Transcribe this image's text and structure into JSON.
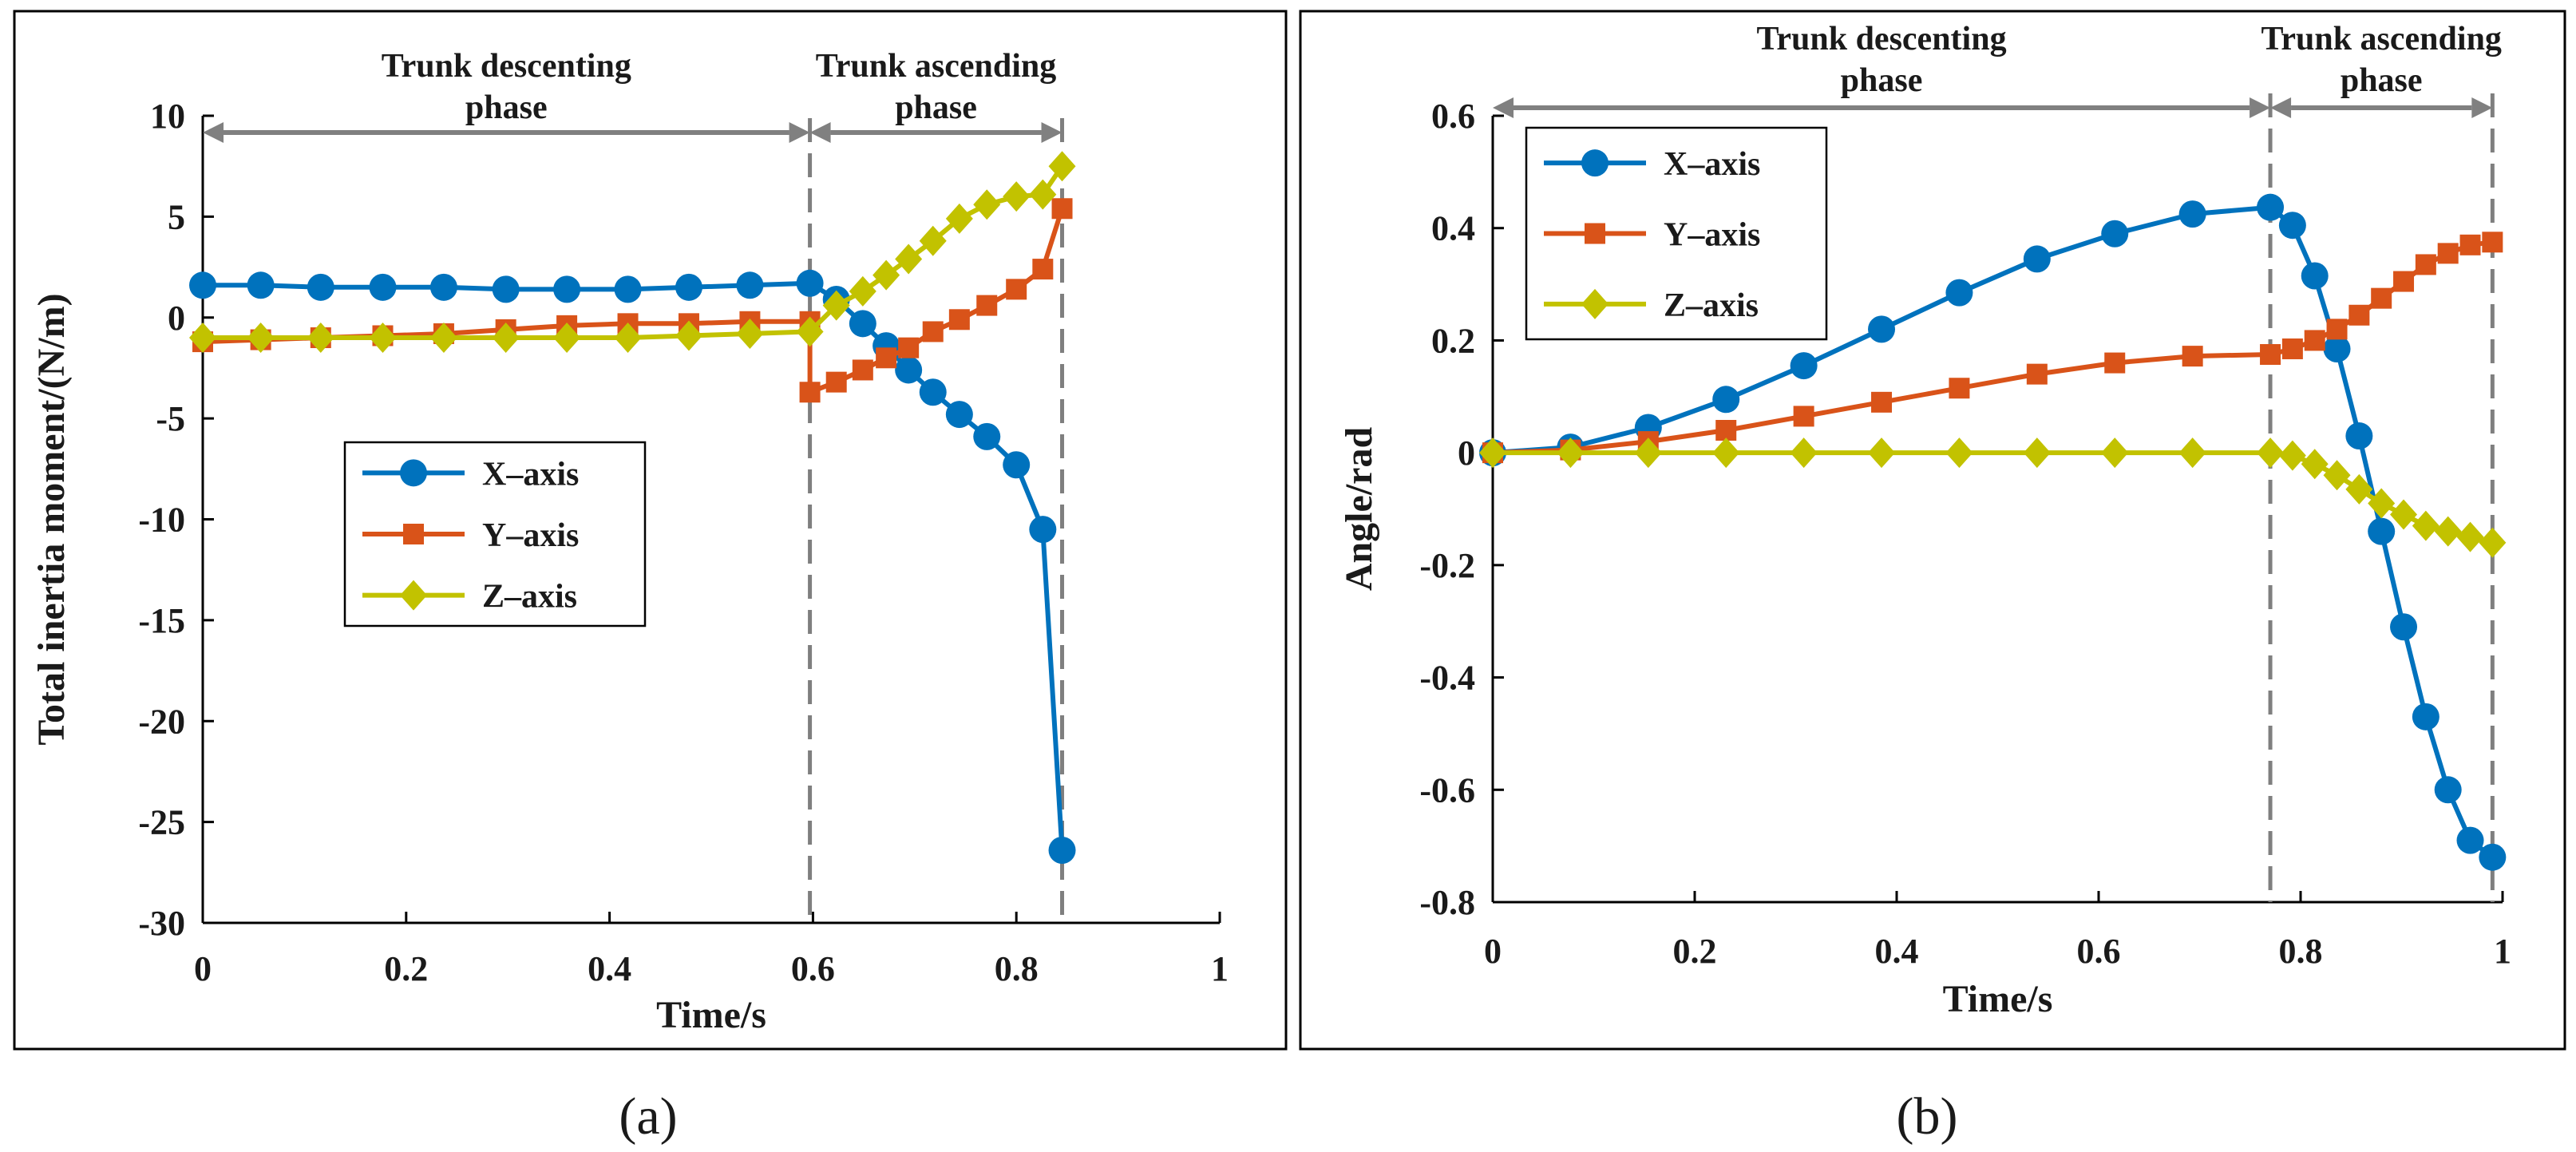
{
  "chart_data": [
    {
      "type": "line",
      "panel_label": "(a)",
      "xlabel": "Time/s",
      "ylabel": "Total inertia moment/(N/m)",
      "xlim": [
        0,
        1
      ],
      "ylim": [
        -30,
        10
      ],
      "xticks": [
        0,
        0.2,
        0.4,
        0.6,
        0.8,
        1
      ],
      "xtick_labels": [
        "0",
        "0.2",
        "0.4",
        "0.6",
        "0.8",
        "1"
      ],
      "yticks": [
        10,
        5,
        0,
        -5,
        -10,
        -15,
        -20,
        -25,
        -30
      ],
      "ytick_labels": [
        "10",
        "5",
        "0",
        "-5",
        "-10",
        "-15",
        "-20",
        "-25",
        "-30"
      ],
      "legend_position": "middle-left",
      "phases": [
        {
          "name": "Trunk descenting",
          "line2": "phase",
          "start": 0,
          "end": 0.597
        },
        {
          "name": "Trunk ascending",
          "line2": "phase",
          "start": 0.597,
          "end": 0.845
        }
      ],
      "dividers": [
        0.597,
        0.845
      ],
      "series": [
        {
          "name": "X–axis",
          "color": "#0072BD",
          "marker": "circle",
          "x": [
            0,
            0.057,
            0.116,
            0.177,
            0.237,
            0.298,
            0.358,
            0.418,
            0.478,
            0.538,
            0.597,
            0.623,
            0.649,
            0.672,
            0.694,
            0.718,
            0.744,
            0.771,
            0.8,
            0.826,
            0.845
          ],
          "y": [
            1.6,
            1.6,
            1.5,
            1.5,
            1.5,
            1.4,
            1.4,
            1.4,
            1.5,
            1.6,
            1.7,
            0.9,
            -0.3,
            -1.4,
            -2.6,
            -3.7,
            -4.8,
            -5.9,
            -7.3,
            -10.5,
            -26.4
          ]
        },
        {
          "name": "Y–axis",
          "color": "#D95319",
          "marker": "square",
          "x": [
            0,
            0.057,
            0.116,
            0.177,
            0.237,
            0.298,
            0.358,
            0.418,
            0.478,
            0.538,
            0.597,
            0.597,
            0.623,
            0.649,
            0.672,
            0.694,
            0.718,
            0.744,
            0.771,
            0.8,
            0.826,
            0.845
          ],
          "y": [
            -1.2,
            -1.1,
            -1.0,
            -0.9,
            -0.8,
            -0.6,
            -0.4,
            -0.3,
            -0.3,
            -0.2,
            -0.2,
            -3.7,
            -3.2,
            -2.6,
            -2.0,
            -1.5,
            -0.7,
            -0.1,
            0.6,
            1.4,
            2.4,
            5.4
          ]
        },
        {
          "name": "Z–axis",
          "color": "#C2C200",
          "marker": "diamond",
          "x": [
            0,
            0.057,
            0.116,
            0.177,
            0.237,
            0.298,
            0.358,
            0.418,
            0.478,
            0.538,
            0.597,
            0.623,
            0.649,
            0.672,
            0.694,
            0.718,
            0.744,
            0.771,
            0.8,
            0.826,
            0.845
          ],
          "y": [
            -1.0,
            -1.0,
            -1.0,
            -1.0,
            -1.0,
            -1.0,
            -1.0,
            -1.0,
            -0.9,
            -0.8,
            -0.7,
            0.6,
            1.3,
            2.1,
            2.9,
            3.8,
            4.9,
            5.6,
            6.0,
            6.1,
            7.5
          ]
        }
      ]
    },
    {
      "type": "line",
      "panel_label": "(b)",
      "xlabel": "Time/s",
      "ylabel": "Angle/rad",
      "xlim": [
        0,
        1
      ],
      "ylim": [
        -0.8,
        0.6
      ],
      "xticks": [
        0,
        0.2,
        0.4,
        0.6,
        0.8,
        1
      ],
      "xtick_labels": [
        "0",
        "0.2",
        "0.4",
        "0.6",
        "0.8",
        "1"
      ],
      "yticks": [
        0.6,
        0.4,
        0.2,
        0,
        -0.2,
        -0.4,
        -0.6,
        -0.8
      ],
      "ytick_labels": [
        "0.6",
        "0.4",
        "0.2",
        "0",
        "-0.2",
        "-0.4",
        "-0.6",
        "-0.8"
      ],
      "legend_position": "top-left",
      "phases": [
        {
          "name": "Trunk descenting",
          "line2": "phase",
          "start": 0,
          "end": 0.77
        },
        {
          "name": "Trunk ascending",
          "line2": "phase",
          "start": 0.77,
          "end": 0.99
        }
      ],
      "dividers": [
        0.77,
        0.99
      ],
      "series": [
        {
          "name": "X–axis",
          "color": "#0072BD",
          "marker": "circle",
          "x": [
            0,
            0.077,
            0.154,
            0.231,
            0.308,
            0.385,
            0.462,
            0.539,
            0.616,
            0.693,
            0.77,
            0.792,
            0.814,
            0.836,
            0.858,
            0.88,
            0.902,
            0.924,
            0.946,
            0.968,
            0.99
          ],
          "y": [
            0,
            0.01,
            0.045,
            0.095,
            0.155,
            0.22,
            0.285,
            0.345,
            0.39,
            0.425,
            0.437,
            0.405,
            0.315,
            0.185,
            0.03,
            -0.14,
            -0.31,
            -0.47,
            -0.6,
            -0.69,
            -0.72
          ]
        },
        {
          "name": "Y–axis",
          "color": "#D95319",
          "marker": "square",
          "x": [
            0,
            0.077,
            0.154,
            0.231,
            0.308,
            0.385,
            0.462,
            0.539,
            0.616,
            0.693,
            0.77,
            0.792,
            0.814,
            0.836,
            0.858,
            0.88,
            0.902,
            0.924,
            0.946,
            0.968,
            0.99
          ],
          "y": [
            0,
            0.005,
            0.02,
            0.04,
            0.065,
            0.09,
            0.115,
            0.14,
            0.16,
            0.172,
            0.175,
            0.185,
            0.2,
            0.22,
            0.245,
            0.275,
            0.305,
            0.335,
            0.355,
            0.37,
            0.375
          ]
        },
        {
          "name": "Z–axis",
          "color": "#C2C200",
          "marker": "diamond",
          "x": [
            0,
            0.077,
            0.154,
            0.231,
            0.308,
            0.385,
            0.462,
            0.539,
            0.616,
            0.693,
            0.77,
            0.792,
            0.814,
            0.836,
            0.858,
            0.88,
            0.902,
            0.924,
            0.946,
            0.968,
            0.99
          ],
          "y": [
            0,
            0,
            0,
            0,
            0,
            0,
            0,
            0,
            0,
            0,
            0,
            -0.005,
            -0.02,
            -0.04,
            -0.065,
            -0.09,
            -0.11,
            -0.13,
            -0.14,
            -0.15,
            -0.16
          ]
        }
      ]
    }
  ]
}
